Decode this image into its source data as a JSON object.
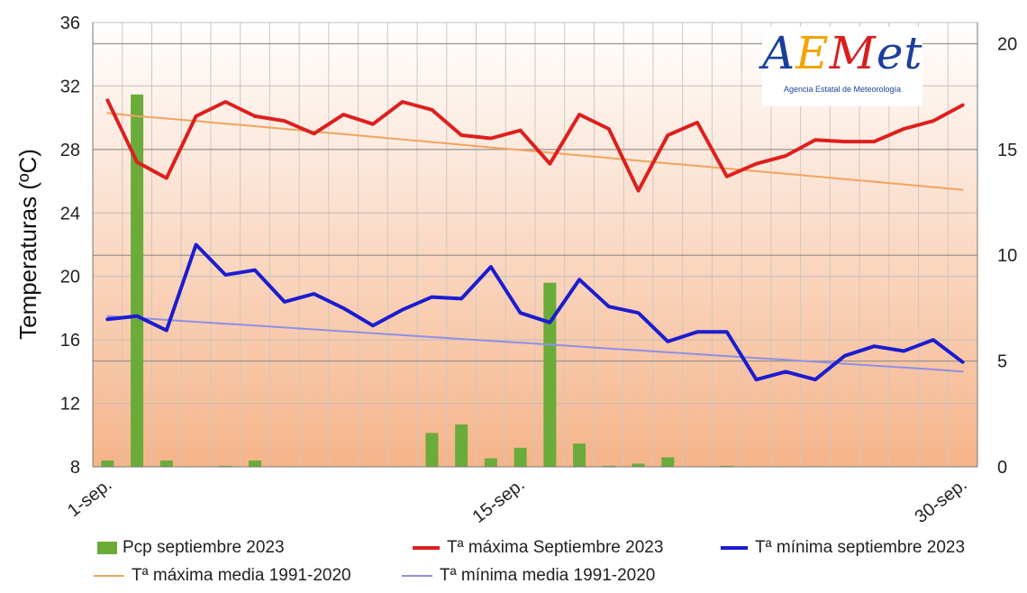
{
  "logo": {
    "name": "AEMet",
    "subtitle": "Agencia Estatal de Meteorología"
  },
  "colors": {
    "tmax": "#dd1f1f",
    "tmin": "#1c1ccf",
    "tmax_mean": "#f2a360",
    "tmin_mean": "#8f8fe6",
    "pcp": "#6aab3a",
    "bg_top": "#ffffff",
    "bg_bottom": "#f5b48a"
  },
  "chart_data": {
    "type": "line",
    "title": "",
    "ylabel": "Temperaturas (ºC)",
    "y2label": "",
    "ylim": [
      8,
      36
    ],
    "yticks": [
      8,
      12,
      16,
      20,
      24,
      28,
      32,
      36
    ],
    "y2lim": [
      0,
      21
    ],
    "y2ticks": [
      0,
      5,
      10,
      15,
      20
    ],
    "x": [
      1,
      2,
      3,
      4,
      5,
      6,
      7,
      8,
      9,
      10,
      11,
      12,
      13,
      14,
      15,
      16,
      17,
      18,
      19,
      20,
      21,
      22,
      23,
      24,
      25,
      26,
      27,
      28,
      29,
      30
    ],
    "xtick_labels": [
      {
        "x": 1,
        "label": "1-sep."
      },
      {
        "x": 15,
        "label": "15-sep."
      },
      {
        "x": 30,
        "label": "30-sep."
      }
    ],
    "grid": true,
    "legend_position": "bottom",
    "series": [
      {
        "name": "Pcp septiembre 2023",
        "type": "bar",
        "axis": "right",
        "values": [
          0.3,
          17.6,
          0.3,
          0,
          0.05,
          0.3,
          0,
          0,
          0,
          0,
          0,
          1.6,
          2.0,
          0.4,
          0.9,
          8.7,
          1.1,
          0.05,
          0.15,
          0.45,
          0,
          0.05,
          0,
          0,
          0,
          0,
          0,
          0,
          0,
          0
        ]
      },
      {
        "name": "Tª máxima Septiembre 2023",
        "type": "line",
        "axis": "left",
        "values": [
          31.1,
          27.2,
          26.2,
          30.1,
          31.0,
          30.1,
          29.8,
          29.0,
          30.2,
          29.6,
          31.0,
          30.5,
          28.9,
          28.7,
          29.2,
          27.1,
          30.2,
          29.3,
          25.4,
          28.9,
          29.7,
          26.3,
          27.1,
          27.6,
          28.6,
          28.5,
          28.5,
          29.3,
          29.8,
          30.8
        ]
      },
      {
        "name": "Tª mínima septiembre 2023",
        "type": "line",
        "axis": "left",
        "values": [
          17.3,
          17.5,
          16.6,
          22.0,
          20.1,
          20.4,
          18.4,
          18.9,
          18.0,
          16.9,
          17.9,
          18.7,
          18.6,
          20.6,
          17.7,
          17.1,
          19.8,
          18.1,
          17.7,
          15.9,
          16.5,
          16.5,
          13.5,
          14.0,
          13.5,
          15.0,
          15.6,
          15.3,
          16.0,
          14.6
        ]
      },
      {
        "name": "Tª máxima media 1991-2020",
        "type": "line",
        "axis": "left",
        "values": [
          30.3,
          30.1,
          29.95,
          29.8,
          29.63,
          29.47,
          29.3,
          29.13,
          28.97,
          28.8,
          28.63,
          28.47,
          28.3,
          28.13,
          27.97,
          27.8,
          27.63,
          27.47,
          27.3,
          27.13,
          26.97,
          26.8,
          26.63,
          26.47,
          26.3,
          26.13,
          25.97,
          25.8,
          25.63,
          25.46
        ]
      },
      {
        "name": "Tª mínima media 1991-2020",
        "type": "line",
        "axis": "left",
        "values": [
          17.5,
          17.38,
          17.26,
          17.14,
          17.02,
          16.9,
          16.78,
          16.66,
          16.54,
          16.42,
          16.3,
          16.18,
          16.06,
          15.94,
          15.82,
          15.7,
          15.58,
          15.46,
          15.34,
          15.22,
          15.1,
          14.98,
          14.86,
          14.74,
          14.62,
          14.5,
          14.38,
          14.26,
          14.14,
          14.0
        ]
      }
    ]
  },
  "legend": {
    "pcp": "Pcp septiembre 2023",
    "tmax": "Tª máxima Septiembre 2023",
    "tmin": "Tª mínima septiembre 2023",
    "tmax_mean": "Tª máxima media 1991-2020",
    "tmin_mean": "Tª mínima media 1991-2020"
  }
}
